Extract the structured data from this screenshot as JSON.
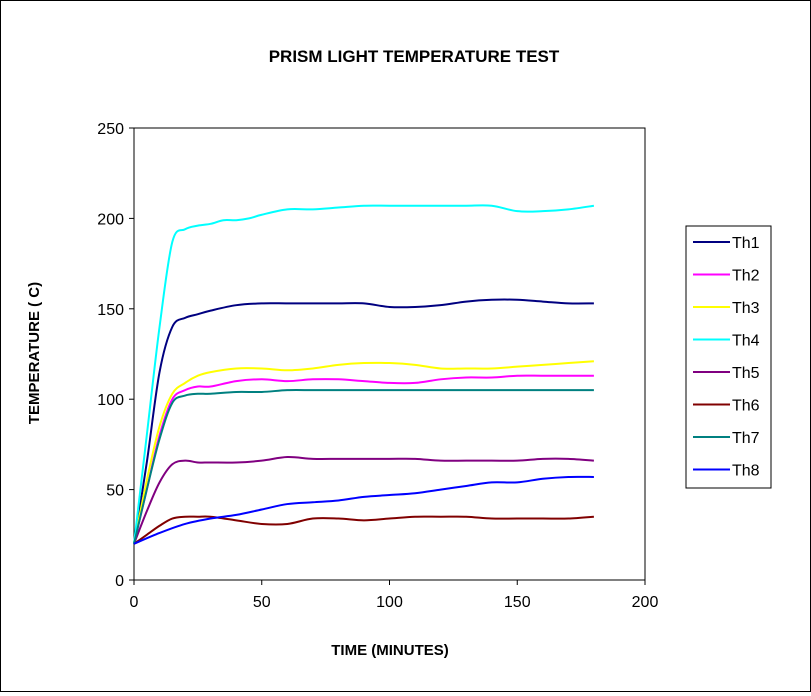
{
  "chart_data": {
    "type": "line",
    "title": "PRISM LIGHT TEMPERATURE TEST",
    "xlabel": "TIME (MINUTES)",
    "ylabel": "TEMPERATURE ( C)",
    "xlim": [
      0,
      200
    ],
    "ylim": [
      0,
      250
    ],
    "xticks": [
      "0",
      "50",
      "100",
      "150",
      "200"
    ],
    "yticks": [
      "0",
      "50",
      "100",
      "150",
      "200",
      "250"
    ],
    "grid": false,
    "legend": "right",
    "series": [
      {
        "name": "Th1",
        "color": "#000080",
        "x": [
          0,
          5,
          10,
          15,
          20,
          25,
          30,
          40,
          50,
          60,
          70,
          80,
          90,
          100,
          110,
          120,
          130,
          140,
          150,
          160,
          170,
          180
        ],
        "y": [
          20,
          65,
          115,
          140,
          145,
          147,
          149,
          152,
          153,
          153,
          153,
          153,
          153,
          151,
          151,
          152,
          154,
          155,
          155,
          154,
          153,
          153
        ]
      },
      {
        "name": "Th2",
        "color": "#FF00FF",
        "x": [
          0,
          5,
          10,
          15,
          20,
          25,
          30,
          40,
          50,
          60,
          70,
          80,
          90,
          100,
          110,
          120,
          130,
          140,
          150,
          160,
          170,
          180
        ],
        "y": [
          20,
          50,
          80,
          100,
          105,
          107,
          107,
          110,
          111,
          110,
          111,
          111,
          110,
          109,
          109,
          111,
          112,
          112,
          113,
          113,
          113,
          113
        ]
      },
      {
        "name": "Th3",
        "color": "#FFFF00",
        "x": [
          0,
          5,
          10,
          15,
          20,
          25,
          30,
          40,
          50,
          60,
          70,
          80,
          90,
          100,
          110,
          120,
          130,
          140,
          150,
          160,
          170,
          180
        ],
        "y": [
          20,
          55,
          85,
          103,
          109,
          113,
          115,
          117,
          117,
          116,
          117,
          119,
          120,
          120,
          119,
          117,
          117,
          117,
          118,
          119,
          120,
          121
        ]
      },
      {
        "name": "Th4",
        "color": "#00FFFF",
        "x": [
          0,
          5,
          10,
          15,
          20,
          25,
          30,
          35,
          40,
          45,
          50,
          60,
          70,
          80,
          90,
          100,
          110,
          120,
          130,
          140,
          150,
          160,
          170,
          180
        ],
        "y": [
          20,
          80,
          140,
          187,
          194,
          196,
          197,
          199,
          199,
          200,
          202,
          205,
          205,
          206,
          207,
          207,
          207,
          207,
          207,
          207,
          204,
          204,
          205,
          207
        ]
      },
      {
        "name": "Th5",
        "color": "#800080",
        "x": [
          0,
          5,
          10,
          15,
          20,
          25,
          30,
          40,
          50,
          60,
          70,
          80,
          90,
          100,
          110,
          120,
          130,
          140,
          150,
          160,
          170,
          180
        ],
        "y": [
          20,
          38,
          54,
          64,
          66,
          65,
          65,
          65,
          66,
          68,
          67,
          67,
          67,
          67,
          67,
          66,
          66,
          66,
          66,
          67,
          67,
          66
        ]
      },
      {
        "name": "Th6",
        "color": "#800000",
        "x": [
          0,
          5,
          10,
          15,
          20,
          25,
          30,
          40,
          50,
          60,
          70,
          80,
          90,
          100,
          110,
          120,
          130,
          140,
          150,
          160,
          170,
          180
        ],
        "y": [
          20,
          25,
          30,
          34,
          35,
          35,
          35,
          33,
          31,
          31,
          34,
          34,
          33,
          34,
          35,
          35,
          35,
          34,
          34,
          34,
          34,
          35
        ]
      },
      {
        "name": "Th7",
        "color": "#008080",
        "x": [
          0,
          5,
          10,
          15,
          20,
          25,
          30,
          40,
          50,
          60,
          70,
          80,
          90,
          100,
          110,
          120,
          130,
          140,
          150,
          160,
          170,
          180
        ],
        "y": [
          20,
          50,
          78,
          98,
          102,
          103,
          103,
          104,
          104,
          105,
          105,
          105,
          105,
          105,
          105,
          105,
          105,
          105,
          105,
          105,
          105,
          105
        ]
      },
      {
        "name": "Th8",
        "color": "#0000FF",
        "x": [
          0,
          10,
          20,
          30,
          40,
          50,
          60,
          70,
          80,
          90,
          100,
          110,
          120,
          130,
          140,
          150,
          160,
          170,
          180
        ],
        "y": [
          20,
          26,
          31,
          34,
          36,
          39,
          42,
          43,
          44,
          46,
          47,
          48,
          50,
          52,
          54,
          54,
          56,
          57,
          57
        ]
      }
    ]
  }
}
